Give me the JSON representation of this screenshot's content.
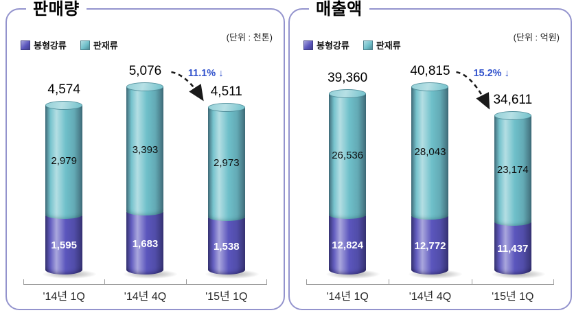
{
  "style": {
    "panel_border": "#9393cd",
    "axis_color": "#9a9a9a",
    "annotation_color": "#3152cc",
    "background": "#ffffff"
  },
  "chart_data": [
    {
      "type": "bar",
      "stacked": true,
      "title": "판매량",
      "unit_label": "(단위 : 천톤)",
      "legend_position": "top-left",
      "value_labels": "segment-values-inside, totals-above",
      "categories": [
        "'14년 1Q",
        "'14년 4Q",
        "'15년 1Q"
      ],
      "series": [
        {
          "name": "봉형강류",
          "color": "#5b56bd",
          "values": [
            1595,
            1683,
            1538
          ]
        },
        {
          "name": "판재류",
          "color": "#6fc0ca",
          "values": [
            2979,
            3393,
            2973
          ]
        }
      ],
      "totals": [
        4574,
        5076,
        4511
      ],
      "annotation": {
        "label": "11.1% ↓",
        "color": "#3152cc",
        "from_index": 1,
        "to_index": 2
      }
    },
    {
      "type": "bar",
      "stacked": true,
      "title": "매출액",
      "unit_label": "(단위 : 억원)",
      "legend_position": "top-left",
      "value_labels": "segment-values-inside, totals-above",
      "categories": [
        "'14년 1Q",
        "'14년 4Q",
        "'15년 1Q"
      ],
      "series": [
        {
          "name": "봉형강류",
          "color": "#5b56bd",
          "values": [
            12824,
            12772,
            11437
          ]
        },
        {
          "name": "판재류",
          "color": "#6fc0ca",
          "values": [
            26536,
            28043,
            23174
          ]
        }
      ],
      "totals": [
        39360,
        40815,
        34611
      ],
      "annotation": {
        "label": "15.2% ↓",
        "color": "#3152cc",
        "from_index": 1,
        "to_index": 2
      }
    }
  ]
}
